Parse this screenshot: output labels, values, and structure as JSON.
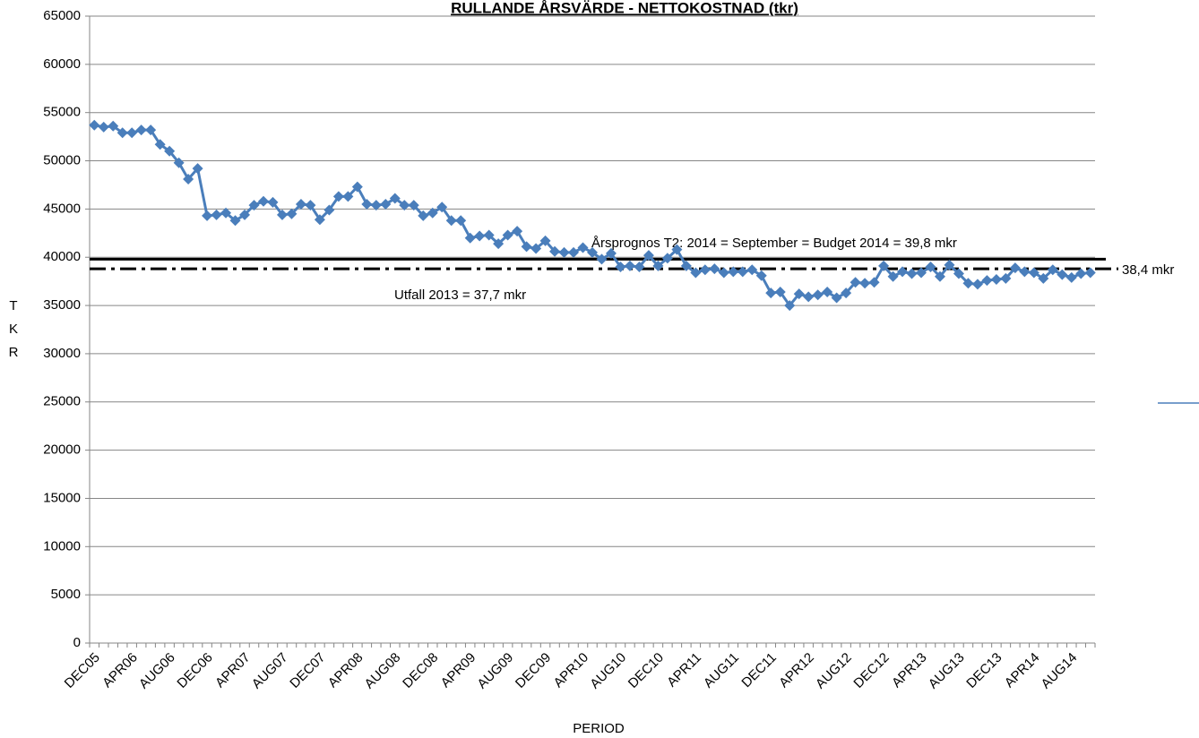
{
  "chart_data": {
    "type": "line",
    "title": "RULLANDE ÅRSVÄRDE - NETTOKOSTNAD (tkr)",
    "x_label": "PERIOD",
    "y_label": "TKR",
    "categories": [
      "DEC05",
      null,
      null,
      null,
      "APR06",
      null,
      null,
      null,
      "AUG06",
      null,
      null,
      null,
      "DEC06",
      null,
      null,
      null,
      "APR07",
      null,
      null,
      null,
      "AUG07",
      null,
      null,
      null,
      "DEC07",
      null,
      null,
      null,
      "APR08",
      null,
      null,
      null,
      "AUG08",
      null,
      null,
      null,
      "DEC08",
      null,
      null,
      null,
      "APR09",
      null,
      null,
      null,
      "AUG09",
      null,
      null,
      null,
      "DEC09",
      null,
      null,
      null,
      "APR10",
      null,
      null,
      null,
      "AUG10",
      null,
      null,
      null,
      "DEC10",
      null,
      null,
      null,
      "APR11",
      null,
      null,
      null,
      "AUG11",
      null,
      null,
      null,
      "DEC11",
      null,
      null,
      null,
      "APR12",
      null,
      null,
      null,
      "AUG12",
      null,
      null,
      null,
      "DEC12",
      null,
      null,
      null,
      "APR13",
      null,
      null,
      null,
      "AUG13",
      null,
      null,
      null,
      "DEC13",
      null,
      null,
      null,
      "APR14",
      null,
      null,
      null,
      "AUG14",
      null,
      null
    ],
    "series": [
      {
        "color": "#4a7ebb",
        "values": [
          53700,
          53500,
          53600,
          52900,
          52900,
          53200,
          53200,
          51700,
          51000,
          49800,
          48100,
          49200,
          44300,
          44400,
          44600,
          43800,
          44400,
          45400,
          45800,
          45700,
          44400,
          44500,
          45500,
          45400,
          43900,
          44900,
          46300,
          46300,
          47300,
          45500,
          45400,
          45500,
          46100,
          45400,
          45400,
          44300,
          44600,
          45200,
          43800,
          43800,
          42000,
          42200,
          42300,
          41400,
          42300,
          42700,
          41100,
          40900,
          41700,
          40600,
          40500,
          40500,
          41000,
          40500,
          39800,
          40400,
          39000,
          39100,
          39000,
          40200,
          39100,
          39900,
          40800,
          39100,
          38400,
          38700,
          38800,
          38400,
          38500,
          38500,
          38700,
          38100,
          36300,
          36400,
          35000,
          36200,
          35900,
          36100,
          36400,
          35800,
          36300,
          37400,
          37300,
          37400,
          39100,
          38000,
          38500,
          38300,
          38400,
          39000,
          38000,
          39200,
          38300,
          37300,
          37200,
          37600,
          37700,
          37800,
          38900,
          38500,
          38400,
          37800,
          38700,
          38200,
          37900,
          38300,
          38400
        ]
      }
    ],
    "ylim": [
      0,
      65000
    ],
    "yticks": [
      0,
      5000,
      10000,
      15000,
      20000,
      25000,
      30000,
      35000,
      40000,
      45000,
      50000,
      55000,
      60000,
      65000
    ],
    "reference_lines": [
      {
        "value": 39800,
        "style": "solid"
      },
      {
        "value": 38800,
        "style": "dashdot"
      }
    ],
    "annotations": [
      "Årsprognos T2: 2014 = September = Budget 2014 = 39,8 mkr",
      "38,4 mkr",
      "Utfall 2013 = 37,7 mkr"
    ],
    "grid": true
  }
}
